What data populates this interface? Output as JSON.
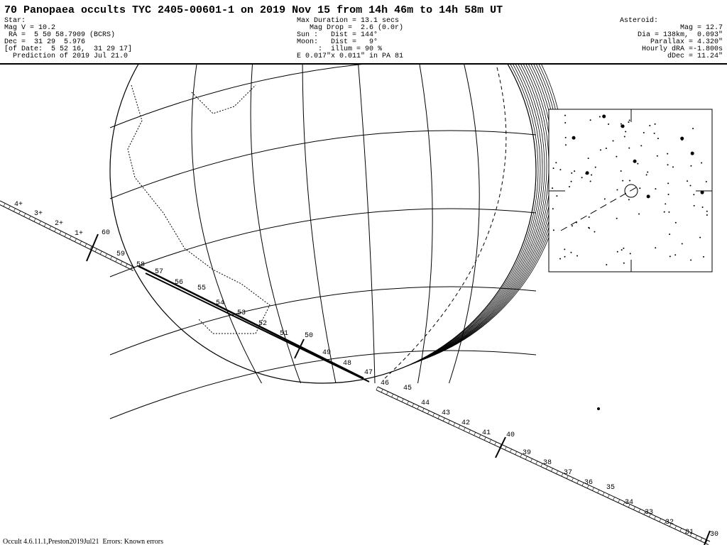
{
  "header": {
    "title": "70 Panopaea occults TYC 2405-00601-1 on 2019 Nov 15 from 14h 46m to 14h 58m UT",
    "star": [
      "Star:",
      "Mag V = 10.2",
      " RA =  5 50 58.7909 (BCRS)",
      "Dec =  31 29  5.976",
      "[of Date:  5 52 16,  31 29 17]",
      "  Prediction of 2019 Jul 21.0"
    ],
    "event": [
      "Max Duration = 13.1 secs",
      "   Mag Drop =  2.6 (0.0r)",
      "Sun :   Dist = 144°",
      "Moon:   Dist =   9°",
      "     :  illum = 90 %",
      "E 0.017\"x 0.011\" in PA 81"
    ],
    "asteroid": [
      "Asteroid:",
      "Mag = 12.7",
      "Dia = 138km,  0.093\"",
      "Parallax = 4.320\"",
      "Hourly dRA =-1.800s",
      "dDec = 11.24\""
    ]
  },
  "path_labels": [
    "4+",
    "3+",
    "2+",
    "1+",
    "60",
    "59",
    "58",
    "57",
    "56",
    "55",
    "54",
    "53",
    "52",
    "51",
    "50",
    "49",
    "48",
    "47",
    "46",
    "45",
    "44",
    "43",
    "42",
    "41",
    "40",
    "39",
    "38",
    "37",
    "36",
    "35",
    "34",
    "33",
    "32",
    "31",
    "30"
  ],
  "footer": "Occult 4.6.11.1,Preston2019Jul21  Errors: Known errors"
}
